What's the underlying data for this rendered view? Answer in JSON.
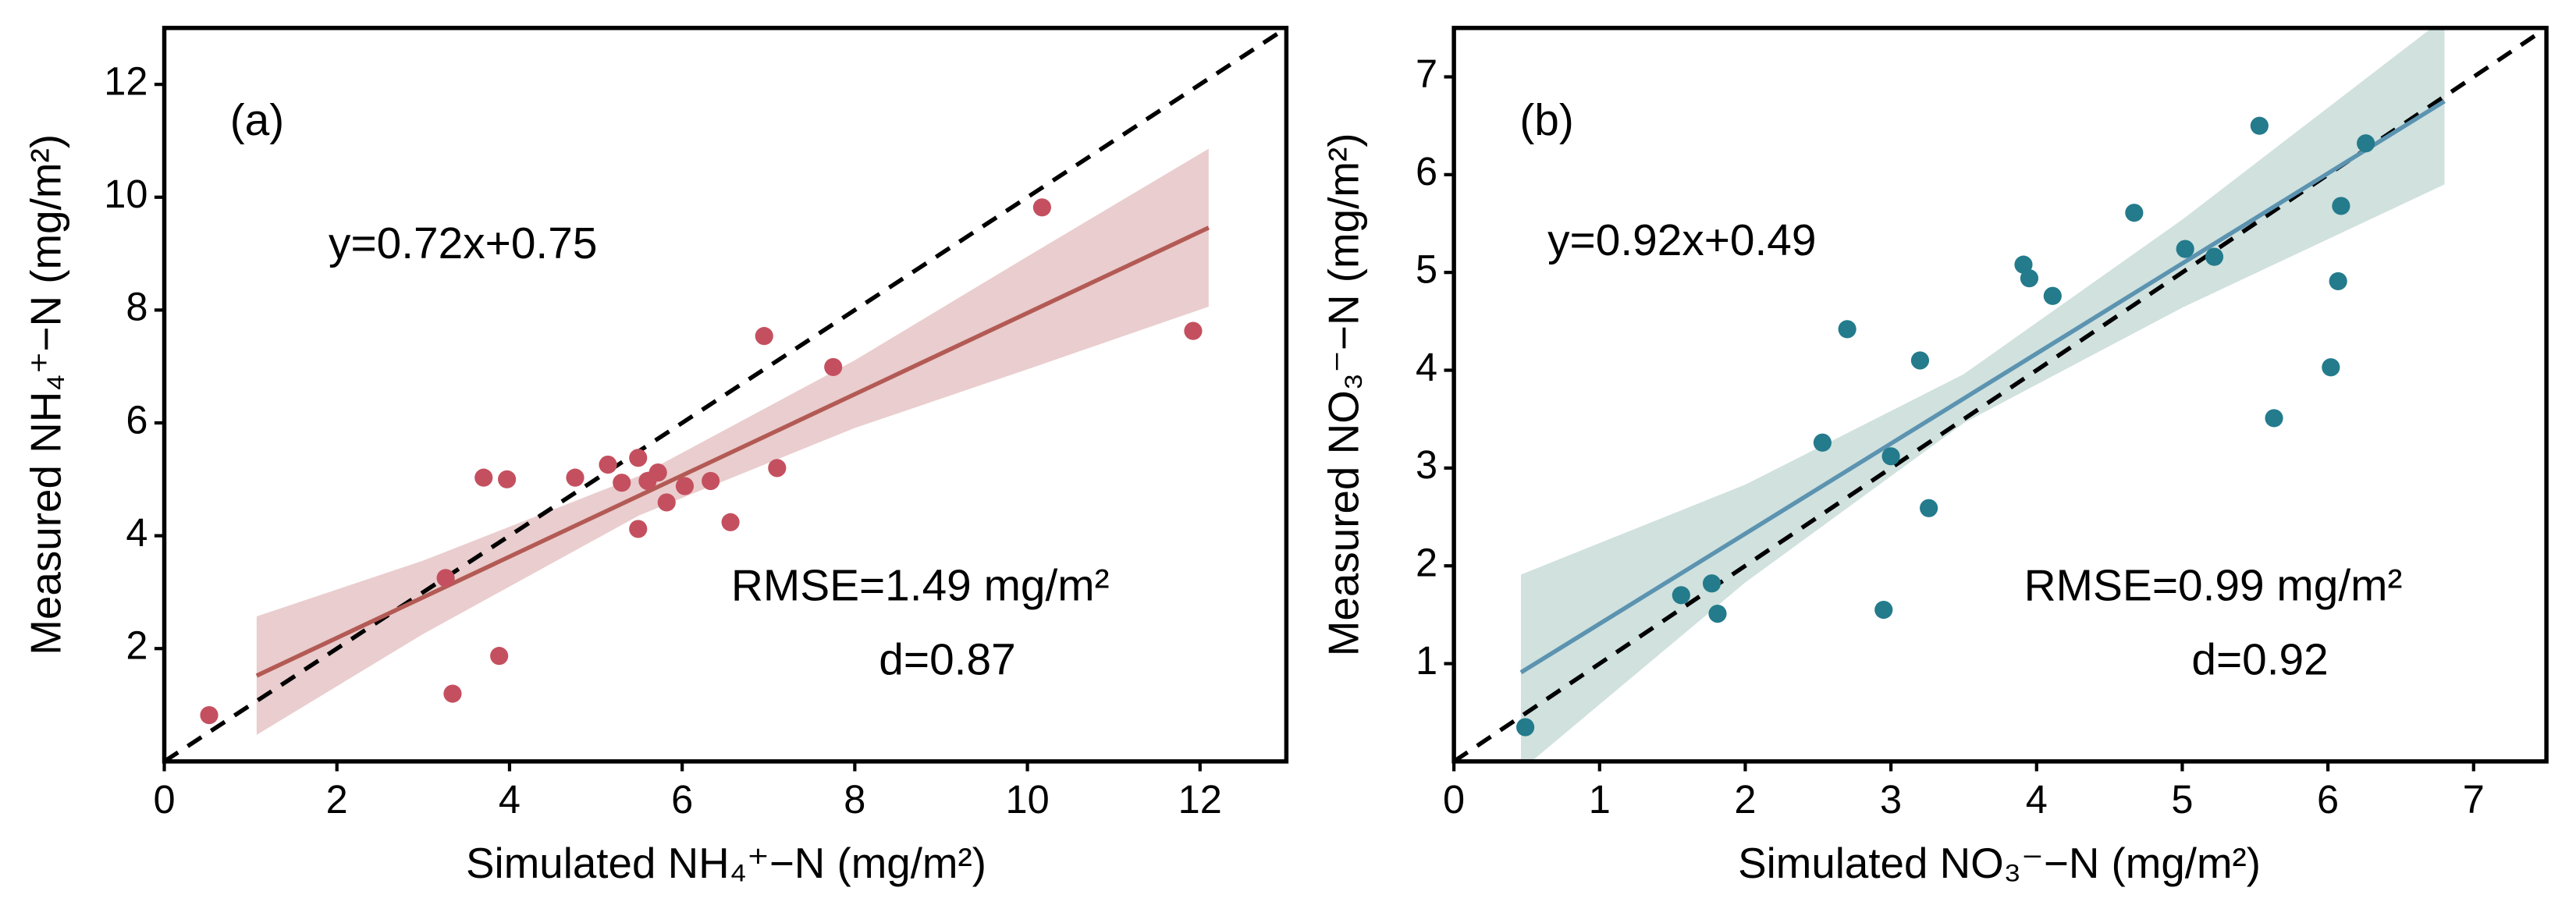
{
  "chart_data": [
    {
      "type": "scatter",
      "panel_label": "(a)",
      "xlabel": "Simulated NH₄⁺−N (mg/m²)",
      "ylabel": "Measured NH₄⁺−N (mg/m²)",
      "equation": "y=0.72x+0.75",
      "rmse": "RMSE=1.49 mg/m²",
      "d": "d=0.87",
      "xlim": [
        0,
        13
      ],
      "ylim": [
        0,
        13
      ],
      "xticks": [
        0,
        2,
        4,
        6,
        8,
        10,
        12
      ],
      "yticks": [
        2,
        4,
        6,
        8,
        10,
        12
      ],
      "color": "#c4505f",
      "x": [
        0.52,
        3.26,
        3.34,
        3.7,
        3.97,
        3.88,
        4.76,
        5.14,
        5.3,
        5.49,
        5.49,
        5.6,
        5.72,
        5.82,
        6.03,
        6.33,
        6.56,
        6.95,
        7.1,
        7.75,
        10.17,
        11.92
      ],
      "values": [
        0.82,
        3.25,
        1.2,
        5.03,
        5.0,
        1.87,
        5.03,
        5.26,
        4.94,
        5.38,
        4.12,
        4.97,
        5.12,
        4.59,
        4.88,
        4.97,
        4.24,
        7.54,
        5.2,
        6.99,
        9.82,
        7.63
      ],
      "fit": {
        "color": "#b35a55",
        "x": [
          1.07,
          12.1
        ],
        "values": [
          1.52,
          9.46
        ]
      },
      "band": {
        "color": "#e6c4c6",
        "x": [
          1.07,
          3,
          5.5,
          8,
          10,
          12.1
        ],
        "lower": [
          0.47,
          2.26,
          4.36,
          5.91,
          6.95,
          8.06
        ],
        "upper": [
          2.57,
          3.56,
          5.06,
          7.11,
          8.95,
          10.86
        ]
      }
    },
    {
      "type": "scatter",
      "panel_label": "(b)",
      "xlabel": "Simulated NO₃⁻−N (mg/m²)",
      "ylabel": "Measured NO₃⁻−N (mg/m²)",
      "equation": "y=0.92x+0.49",
      "rmse": "RMSE=0.99 mg/m²",
      "d": "d=0.92",
      "xlim": [
        0,
        7.5
      ],
      "ylim": [
        0,
        7.5
      ],
      "xticks": [
        0,
        1,
        2,
        3,
        4,
        5,
        6,
        7
      ],
      "yticks": [
        1,
        2,
        3,
        4,
        5,
        6,
        7
      ],
      "color": "#237b8c",
      "x": [
        0.49,
        1.56,
        1.77,
        1.81,
        2.53,
        2.7,
        3.0,
        2.95,
        3.2,
        3.26,
        3.91,
        3.95,
        4.11,
        4.67,
        5.02,
        5.22,
        5.53,
        5.63,
        6.02,
        6.07,
        6.09,
        6.26
      ],
      "values": [
        0.35,
        1.7,
        1.82,
        1.51,
        3.26,
        4.42,
        3.12,
        1.55,
        4.1,
        2.59,
        5.08,
        4.94,
        4.76,
        5.61,
        5.24,
        5.16,
        6.5,
        3.51,
        4.03,
        4.91,
        5.68,
        6.32
      ],
      "fit": {
        "color": "#5b93b0",
        "x": [
          0.46,
          6.8
        ],
        "values": [
          0.91,
          6.75
        ]
      },
      "band": {
        "color": "#c8dcd8",
        "x": [
          0.46,
          2,
          3.5,
          5,
          6.8
        ],
        "lower": [
          -0.09,
          1.83,
          3.46,
          4.64,
          5.9
        ],
        "upper": [
          1.91,
          2.83,
          3.96,
          5.54,
          7.6
        ]
      }
    }
  ]
}
